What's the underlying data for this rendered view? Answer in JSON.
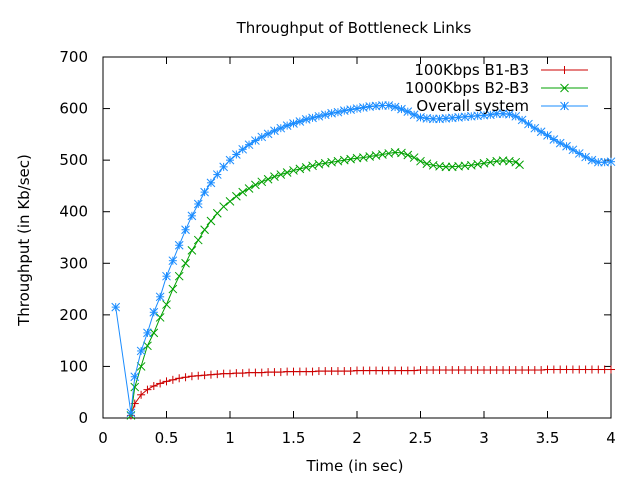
{
  "chart_data": {
    "type": "line",
    "title": "Throughput of Bottleneck Links",
    "xlabel": "Time (in sec)",
    "ylabel": "Throughput (in Kb/sec)",
    "xlim": [
      0,
      4
    ],
    "ylim": [
      0,
      700
    ],
    "xticks": [
      0,
      0.5,
      1,
      1.5,
      2,
      2.5,
      3,
      3.5,
      4
    ],
    "xtick_labels": [
      "0",
      "0.5",
      "1",
      "1.5",
      "2",
      "2.5",
      "3",
      "3.5",
      "4"
    ],
    "yticks": [
      0,
      100,
      200,
      300,
      400,
      500,
      600,
      700
    ],
    "ytick_labels": [
      "0",
      "100",
      "200",
      "300",
      "400",
      "500",
      "600",
      "700"
    ],
    "grid": false,
    "legend_position": "top-right",
    "series": [
      {
        "name": "100Kbps B1-B3",
        "color": "#cc0000",
        "marker": "plus",
        "x": [
          0.22,
          0.25,
          0.3,
          0.35,
          0.4,
          0.45,
          0.5,
          0.55,
          0.6,
          0.65,
          0.7,
          0.75,
          0.8,
          0.85,
          0.9,
          0.95,
          1.0,
          1.05,
          1.1,
          1.15,
          1.2,
          1.25,
          1.3,
          1.35,
          1.4,
          1.45,
          1.5,
          1.55,
          1.6,
          1.65,
          1.7,
          1.75,
          1.8,
          1.85,
          1.9,
          1.95,
          2.0,
          2.05,
          2.1,
          2.15,
          2.2,
          2.25,
          2.3,
          2.35,
          2.4,
          2.45,
          2.5,
          2.55,
          2.6,
          2.65,
          2.7,
          2.75,
          2.8,
          2.85,
          2.9,
          2.95,
          3.0,
          3.05,
          3.1,
          3.15,
          3.2,
          3.25,
          3.3,
          3.35,
          3.4,
          3.45,
          3.5,
          3.55,
          3.6,
          3.65,
          3.7,
          3.75,
          3.8,
          3.85,
          3.9,
          3.95,
          4.0
        ],
        "values": [
          5,
          28,
          45,
          55,
          62,
          67,
          71,
          74,
          77,
          79,
          81,
          82,
          83,
          84,
          85,
          86,
          86,
          87,
          87,
          88,
          88,
          88,
          89,
          89,
          89,
          90,
          90,
          90,
          90,
          90,
          91,
          91,
          91,
          91,
          91,
          91,
          92,
          92,
          92,
          92,
          92,
          92,
          92,
          92,
          92,
          92,
          93,
          93,
          93,
          93,
          93,
          93,
          93,
          93,
          93,
          93,
          93,
          93,
          93,
          93,
          93,
          93,
          93,
          93,
          93,
          93,
          94,
          94,
          94,
          94,
          94,
          94,
          94,
          94,
          94,
          94,
          94
        ]
      },
      {
        "name": "1000Kbps B2-B3",
        "color": "#00a000",
        "marker": "cross",
        "x": [
          0.22,
          0.25,
          0.3,
          0.35,
          0.4,
          0.45,
          0.5,
          0.55,
          0.6,
          0.65,
          0.7,
          0.75,
          0.8,
          0.85,
          0.9,
          0.95,
          1.0,
          1.05,
          1.1,
          1.15,
          1.2,
          1.25,
          1.3,
          1.35,
          1.4,
          1.45,
          1.5,
          1.55,
          1.6,
          1.65,
          1.7,
          1.75,
          1.8,
          1.85,
          1.9,
          1.95,
          2.0,
          2.05,
          2.1,
          2.15,
          2.2,
          2.25,
          2.3,
          2.35,
          2.4,
          2.45,
          2.5,
          2.55,
          2.6,
          2.65,
          2.7,
          2.75,
          2.8,
          2.85,
          2.9,
          2.95,
          3.0,
          3.05,
          3.1,
          3.15,
          3.2,
          3.25,
          3.28
        ],
        "values": [
          5,
          60,
          100,
          140,
          165,
          195,
          220,
          250,
          275,
          300,
          325,
          345,
          365,
          382,
          397,
          410,
          420,
          430,
          438,
          445,
          452,
          458,
          463,
          468,
          472,
          476,
          480,
          483,
          486,
          489,
          492,
          494,
          496,
          498,
          500,
          502,
          504,
          505,
          507,
          509,
          511,
          513,
          515,
          514,
          510,
          505,
          498,
          493,
          490,
          488,
          487,
          487,
          488,
          489,
          490,
          492,
          494,
          496,
          498,
          499,
          498,
          496,
          491
        ]
      },
      {
        "name": "Overall system",
        "color": "#1a8cff",
        "marker": "star",
        "x": [
          0.1,
          0.22,
          0.25,
          0.3,
          0.35,
          0.4,
          0.45,
          0.5,
          0.55,
          0.6,
          0.65,
          0.7,
          0.75,
          0.8,
          0.85,
          0.9,
          0.95,
          1.0,
          1.05,
          1.1,
          1.15,
          1.2,
          1.25,
          1.3,
          1.35,
          1.4,
          1.45,
          1.5,
          1.55,
          1.6,
          1.65,
          1.7,
          1.75,
          1.8,
          1.85,
          1.9,
          1.95,
          2.0,
          2.05,
          2.1,
          2.15,
          2.2,
          2.25,
          2.3,
          2.35,
          2.4,
          2.45,
          2.5,
          2.55,
          2.6,
          2.65,
          2.7,
          2.75,
          2.8,
          2.85,
          2.9,
          2.95,
          3.0,
          3.05,
          3.1,
          3.15,
          3.2,
          3.25,
          3.3,
          3.35,
          3.4,
          3.45,
          3.5,
          3.55,
          3.6,
          3.65,
          3.7,
          3.75,
          3.8,
          3.85,
          3.9,
          3.95,
          4.0
        ],
        "values": [
          215,
          10,
          80,
          130,
          165,
          205,
          235,
          275,
          305,
          335,
          365,
          392,
          415,
          438,
          456,
          472,
          487,
          500,
          511,
          521,
          530,
          538,
          545,
          551,
          557,
          562,
          567,
          571,
          575,
          579,
          582,
          585,
          588,
          591,
          593,
          596,
          598,
          600,
          602,
          604,
          605,
          606,
          606,
          603,
          599,
          594,
          588,
          583,
          581,
          580,
          580,
          581,
          582,
          583,
          584,
          585,
          586,
          587,
          588,
          590,
          590,
          589,
          585,
          578,
          570,
          562,
          555,
          548,
          540,
          533,
          527,
          520,
          513,
          506,
          500,
          496,
          496,
          497
        ]
      }
    ]
  }
}
